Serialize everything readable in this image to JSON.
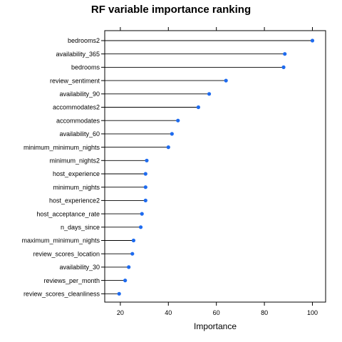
{
  "chart_data": {
    "type": "dotplot",
    "title": "RF variable importance ranking",
    "xlabel": "Importance",
    "ylabel": "",
    "xlim": [
      13.5,
      105.5
    ],
    "x_ticks": [
      20,
      40,
      60,
      80,
      100
    ],
    "categories": [
      "bedrooms2",
      "availability_365",
      "bedrooms",
      "review_sentiment",
      "availability_90",
      "accommodates2",
      "accommodates",
      "availability_60",
      "minimum_minimum_nights",
      "minimum_nights2",
      "host_experience",
      "minimum_nights",
      "host_experience2",
      "host_acceptance_rate",
      "n_days_since",
      "maximum_minimum_nights",
      "review_scores_location",
      "availability_30",
      "reviews_per_month",
      "review_scores_cleanliness"
    ],
    "values": [
      100,
      88.5,
      88,
      64,
      57,
      52.5,
      44,
      41.5,
      40,
      31,
      30.5,
      30.5,
      30.5,
      29,
      28.5,
      25.5,
      25,
      23.5,
      22,
      19.5
    ],
    "grid": false,
    "colors": {
      "point": "#1E6BEF",
      "line": "#000000",
      "frame": "#000000"
    }
  }
}
